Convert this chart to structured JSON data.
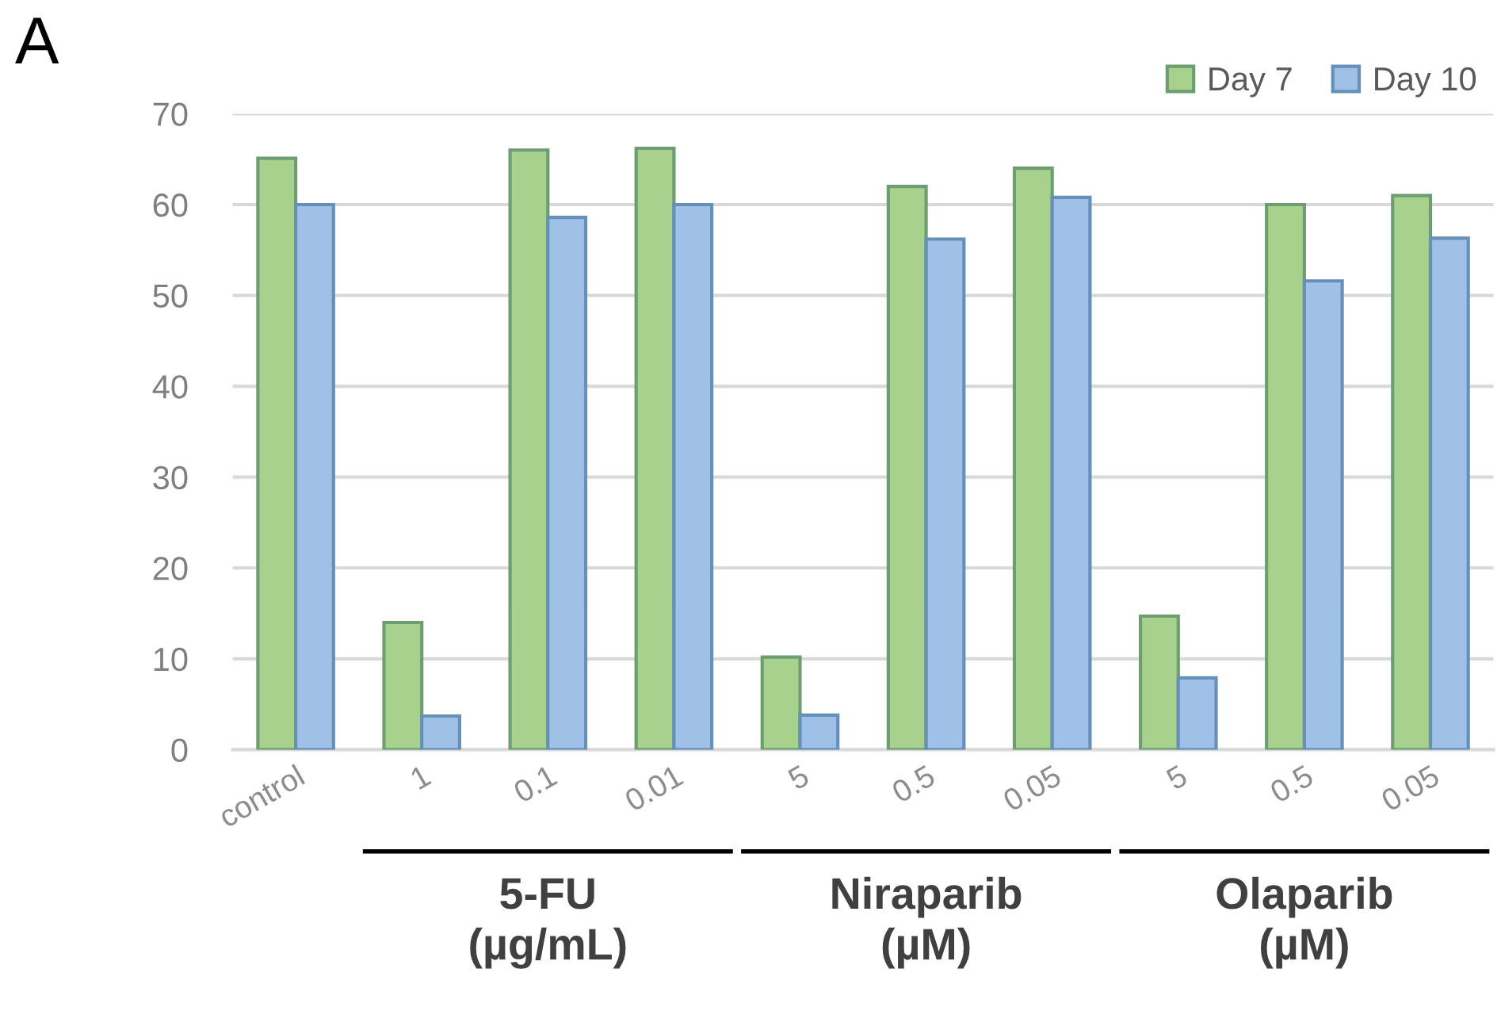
{
  "chart_data": {
    "type": "bar",
    "title": "A",
    "categories": [
      "control",
      "1",
      "0.1",
      "0.01",
      "5",
      "0.5",
      "0.05",
      "5",
      "0.5",
      "0.05"
    ],
    "series": [
      {
        "name": "Day 7",
        "color": "#a9d18e",
        "values": [
          65.1,
          14,
          66,
          66.2,
          10.2,
          62,
          64,
          14.7,
          60,
          61
        ]
      },
      {
        "name": "Day 10",
        "color": "#9fc0e7",
        "values": [
          60,
          3.7,
          58.6,
          60,
          3.8,
          56.2,
          60.8,
          7.9,
          51.6,
          56.3
        ]
      }
    ],
    "ylim": [
      0,
      70
    ],
    "yticks": [
      0,
      10,
      20,
      30,
      40,
      50,
      60,
      70
    ],
    "grid": "y",
    "legend": "top right",
    "annotations": [
      "5-FU\n(µg/mL)",
      "Niraparib\n(µM)",
      "Olaparib\n(µM)"
    ]
  }
}
